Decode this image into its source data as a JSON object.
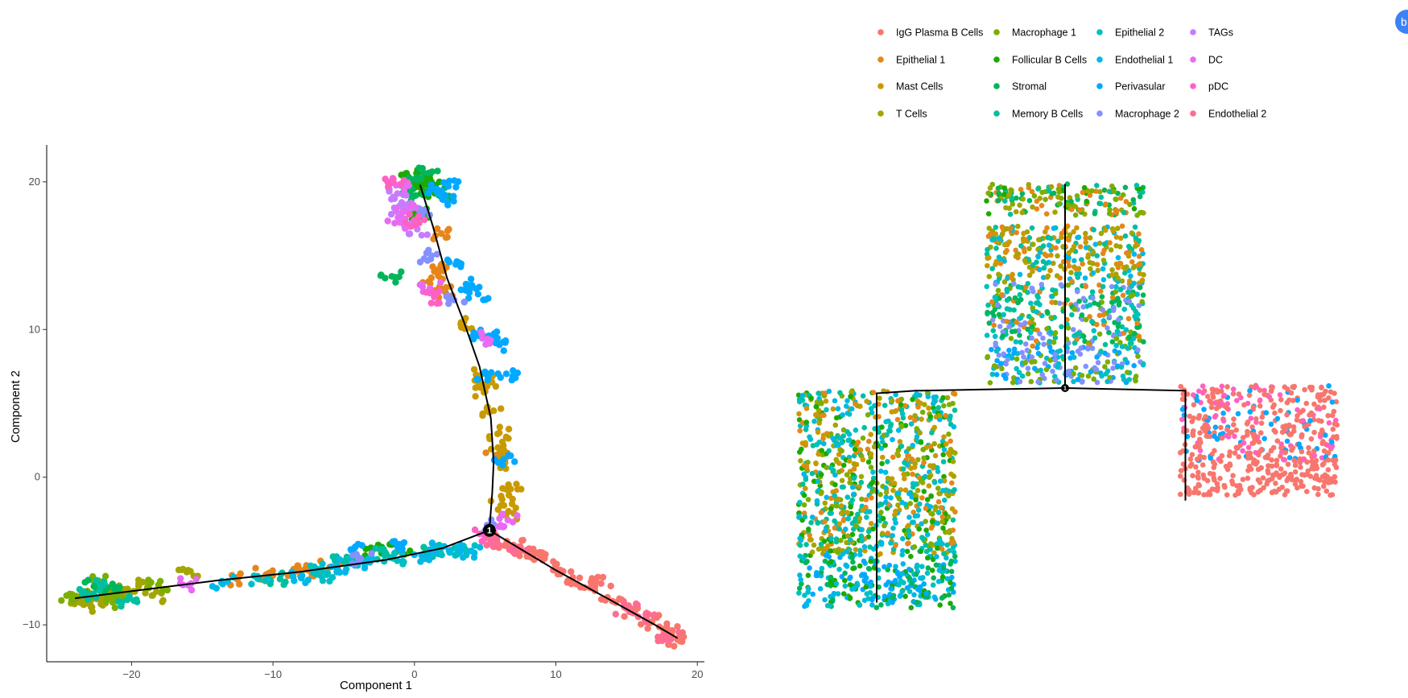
{
  "figure": {
    "badge_text": "b",
    "legend": [
      {
        "label": "IgG Plasma B Cells",
        "color": "#F8766D"
      },
      {
        "label": "Epithelial 1",
        "color": "#E6861A"
      },
      {
        "label": "Mast Cells",
        "color": "#C99A00"
      },
      {
        "label": "T Cells",
        "color": "#A3A500"
      },
      {
        "label": "Macrophage 1",
        "color": "#7CAE00"
      },
      {
        "label": "Follicular B Cells",
        "color": "#1BAA00"
      },
      {
        "label": "Stromal",
        "color": "#00B55A"
      },
      {
        "label": "Memory B Cells",
        "color": "#00BFA0"
      },
      {
        "label": "Epithelial 2",
        "color": "#00BFC4"
      },
      {
        "label": "Endothelial 1",
        "color": "#00B8E7"
      },
      {
        "label": "Perivasular",
        "color": "#00A9FF"
      },
      {
        "label": "Macrophage 2",
        "color": "#8491FF"
      },
      {
        "label": "TAGs",
        "color": "#C77CFF"
      },
      {
        "label": "DC",
        "color": "#E76BF3"
      },
      {
        "label": "pDC",
        "color": "#FF61C3"
      },
      {
        "label": "Endothelial 2",
        "color": "#FF6C91"
      }
    ]
  },
  "chart_data": [
    {
      "type": "scatter",
      "title": "",
      "xlabel": "Component 1",
      "ylabel": "Component 2",
      "xlim": [
        -26,
        20.5
      ],
      "ylim": [
        -12.5,
        22.5
      ],
      "x_ticks": [
        -20,
        -10,
        0,
        10,
        20
      ],
      "y_ticks": [
        -10,
        0,
        10,
        20
      ],
      "grid": false,
      "branch_point_label": "1",
      "branch_point": [
        5.3,
        -3.6
      ],
      "trajectory": [
        [
          [
            5.3,
            -3.6
          ],
          [
            5.5,
            -1
          ],
          [
            5.6,
            1
          ],
          [
            5.4,
            4
          ],
          [
            4.6,
            7.5
          ],
          [
            3.5,
            10.5
          ],
          [
            2.3,
            13.5
          ],
          [
            1.3,
            17
          ],
          [
            0.4,
            19.8
          ]
        ],
        [
          [
            5.3,
            -3.6
          ],
          [
            2,
            -4.8
          ],
          [
            -2,
            -5.6
          ],
          [
            -8,
            -6.4
          ],
          [
            -14,
            -7
          ],
          [
            -19,
            -7.6
          ],
          [
            -24,
            -8.2
          ]
        ],
        [
          [
            5.3,
            -3.6
          ],
          [
            10,
            -6.3
          ],
          [
            14,
            -8.4
          ],
          [
            17,
            -10
          ],
          [
            18.6,
            -10.9
          ]
        ]
      ],
      "series": [
        {
          "name": "IgG Plasma B Cells",
          "points": [
            [
              5.5,
              -4.5
            ],
            [
              7,
              -4.6
            ],
            [
              8.5,
              -5.2
            ],
            [
              10,
              -6.2
            ],
            [
              11.2,
              -6.8
            ],
            [
              12.5,
              -7.5
            ],
            [
              14,
              -8.4
            ],
            [
              15.5,
              -9.2
            ],
            [
              16.8,
              -9.8
            ],
            [
              17.6,
              -10.3
            ],
            [
              18.2,
              -10.7
            ],
            [
              18.6,
              -11.0
            ],
            [
              13.2,
              -7.2
            ],
            [
              7.8,
              -5.0
            ],
            [
              17.9,
              -10.5
            ],
            [
              9.2,
              -5.5
            ]
          ]
        },
        {
          "name": "Epithelial 1",
          "points": [
            [
              1.6,
              14
            ],
            [
              2.2,
              12.5
            ],
            [
              1.9,
              16.5
            ],
            [
              -12.5,
              -6.9
            ],
            [
              -10.5,
              -6.6
            ],
            [
              -8.5,
              -6.4
            ],
            [
              -6,
              -6.1
            ],
            [
              5.8,
              1.5
            ],
            [
              1.2,
              13.5
            ],
            [
              -7.5,
              -6.3
            ]
          ]
        },
        {
          "name": "Mast Cells",
          "points": [
            [
              5.2,
              6.5
            ],
            [
              5.6,
              4.5
            ],
            [
              6.0,
              3.0
            ],
            [
              6.4,
              1.0
            ],
            [
              6.8,
              -0.8
            ],
            [
              6.5,
              -2.5
            ],
            [
              4.8,
              7.0
            ],
            [
              5.9,
              2.0
            ],
            [
              6.2,
              -1.5
            ],
            [
              3.5,
              10.5
            ],
            [
              5.0,
              5.8
            ]
          ]
        },
        {
          "name": "T Cells",
          "points": [
            [
              -23,
              -8.0
            ],
            [
              -22.3,
              -8.2
            ],
            [
              -21.5,
              -7.8
            ],
            [
              -20.5,
              -7.6
            ],
            [
              -19.5,
              -7.4
            ],
            [
              -18.5,
              -8.0
            ],
            [
              -23.8,
              -8.4
            ],
            [
              -22.8,
              -8.8
            ],
            [
              -16,
              -6.3
            ],
            [
              -21,
              -7.9
            ]
          ]
        },
        {
          "name": "Macrophage 1",
          "points": [
            [
              -22.5,
              -7.5
            ],
            [
              -23.5,
              -7.8
            ],
            [
              -21.8,
              -8.4
            ],
            [
              -20.8,
              -7.9
            ],
            [
              -24.2,
              -8.1
            ],
            [
              -22,
              -7.1
            ],
            [
              -18.1,
              -7.3
            ]
          ]
        },
        {
          "name": "Follicular B Cells",
          "points": [
            [
              0.2,
              20.5
            ],
            [
              0.8,
              20.3
            ],
            [
              1.2,
              20.0
            ],
            [
              -0.3,
              20.2
            ],
            [
              0.5,
              19.6
            ],
            [
              1.5,
              19.4
            ],
            [
              -3,
              -5.0
            ],
            [
              -1,
              -4.8
            ],
            [
              0.6,
              17.8
            ]
          ]
        },
        {
          "name": "Stromal",
          "points": [
            [
              1.0,
              20.6
            ],
            [
              -0.6,
              19.9
            ],
            [
              1.8,
              19.2
            ],
            [
              -0.1,
              19.0
            ],
            [
              -22.6,
              -7.4
            ],
            [
              -21.2,
              -7.6
            ],
            [
              -1.6,
              13.6
            ]
          ]
        },
        {
          "name": "Memory B Cells",
          "points": [
            [
              -22.2,
              -7.3
            ],
            [
              -23.2,
              -8.0
            ],
            [
              -20.3,
              -8.3
            ],
            [
              -5,
              -5.7
            ],
            [
              -2,
              -5.2
            ],
            [
              -9.5,
              -6.9
            ],
            [
              1.0,
              -5.0
            ]
          ]
        },
        {
          "name": "Epithelial 2",
          "points": [
            [
              -11,
              -6.9
            ],
            [
              -7,
              -6.2
            ],
            [
              -4,
              -5.8
            ],
            [
              -1.5,
              -5.5
            ],
            [
              2.5,
              -5.1
            ],
            [
              3.6,
              -4.9
            ],
            [
              -6.2,
              -6.6
            ]
          ]
        },
        {
          "name": "Endothelial 1",
          "points": [
            [
              -8,
              -6.8
            ],
            [
              -5.5,
              -6.0
            ],
            [
              -3.5,
              -5.9
            ],
            [
              0.5,
              -5.3
            ],
            [
              2.0,
              -4.7
            ],
            [
              4.0,
              -5.0
            ],
            [
              -13.5,
              -7.1
            ]
          ]
        },
        {
          "name": "Perivasular",
          "points": [
            [
              1.6,
              19.5
            ],
            [
              2.4,
              19.7
            ],
            [
              2.0,
              18.8
            ],
            [
              3.0,
              14.6
            ],
            [
              3.8,
              13.0
            ],
            [
              4.5,
              12.4
            ],
            [
              4.2,
              9.8
            ],
            [
              5.3,
              9.5
            ],
            [
              6.0,
              9.0
            ],
            [
              6.5,
              7.0
            ],
            [
              5.2,
              6.8
            ],
            [
              6.3,
              1.2
            ],
            [
              -4.5,
              -4.9
            ],
            [
              -1.2,
              -4.7
            ]
          ]
        },
        {
          "name": "Macrophage 2",
          "points": [
            [
              1.2,
              15.0
            ],
            [
              0.3,
              18.2
            ],
            [
              2.8,
              12.0
            ],
            [
              5.6,
              -3.2
            ],
            [
              -3.8,
              -5.5
            ]
          ]
        },
        {
          "name": "TAGs",
          "points": [
            [
              -1.2,
              19.2
            ],
            [
              -0.9,
              18.6
            ],
            [
              0.2,
              16.8
            ],
            [
              -1.3,
              18.0
            ]
          ]
        },
        {
          "name": "DC",
          "points": [
            [
              -1.0,
              19.8
            ],
            [
              -0.6,
              18.0
            ],
            [
              1.1,
              12.8
            ],
            [
              4.8,
              9.4
            ],
            [
              6.6,
              -2.9
            ],
            [
              -15.8,
              -7.2
            ],
            [
              -1.4,
              17.2
            ]
          ]
        },
        {
          "name": "pDC",
          "points": [
            [
              -1.5,
              20.0
            ],
            [
              0.0,
              17.4
            ],
            [
              1.4,
              12.2
            ],
            [
              5.0,
              -4.0
            ]
          ]
        },
        {
          "name": "Endothelial 2",
          "points": [
            [
              5.8,
              -4.3
            ],
            [
              7.4,
              -4.9
            ],
            [
              18.0,
              -10.9
            ],
            [
              15.0,
              -8.9
            ],
            [
              16.3,
              -9.6
            ]
          ]
        }
      ]
    },
    {
      "type": "scatter",
      "title": "",
      "xlabel": "",
      "ylabel": "",
      "grid": false,
      "axes": false,
      "branch_point_label": "1",
      "tree": {
        "root": [
          0,
          0
        ],
        "trunk_top": [
          0,
          7.8
        ],
        "left_branch": [
          [
            0,
            0
          ],
          [
            -5.7,
            -0.1
          ],
          [
            -7.2,
            -0.2
          ],
          [
            -7.2,
            -8.2
          ]
        ],
        "right_branch": [
          [
            0,
            0
          ],
          [
            4.6,
            -0.1
          ],
          [
            4.6,
            -4.3
          ]
        ]
      },
      "cell_groups": [
        {
          "branch": "top",
          "rows": [
            {
              "y_range": [
                6.6,
                7.8
              ],
              "colors": [
                "#7CAE00",
                "#A3A500",
                "#1BAA00",
                "#00B55A",
                "#00BFA0",
                "#E6861A"
              ]
            },
            {
              "y_range": [
                4.0,
                6.2
              ],
              "colors": [
                "#E6861A",
                "#C99A00",
                "#00BFA0",
                "#00B8E7",
                "#A3A500"
              ]
            },
            {
              "y_range": [
                1.6,
                4.0
              ],
              "colors": [
                "#00BFA0",
                "#00B55A",
                "#00BFC4",
                "#8491FF",
                "#E6861A",
                "#7CAE00"
              ]
            },
            {
              "y_range": [
                0.2,
                1.6
              ],
              "colors": [
                "#8491FF",
                "#00BFC4",
                "#00A9FF",
                "#7CAE00"
              ]
            }
          ]
        },
        {
          "branch": "left",
          "rows": [
            {
              "y_range": [
                -6.4,
                -0.1
              ],
              "colors": [
                "#C99A00",
                "#A3A500",
                "#00BFC4",
                "#00B8E7",
                "#00BFA0",
                "#E6861A",
                "#7CAE00",
                "#1BAA00"
              ]
            },
            {
              "y_range": [
                -8.4,
                -6.4
              ],
              "colors": [
                "#00A9FF",
                "#1BAA00",
                "#00B8E7",
                "#00BFC4",
                "#00B55A"
              ]
            }
          ]
        },
        {
          "branch": "right",
          "rows": [
            {
              "y_range": [
                -2.8,
                0.1
              ],
              "colors": [
                "#F8766D",
                "#F8766D",
                "#F8766D",
                "#F8766D",
                "#FF61C3",
                "#00A9FF"
              ]
            },
            {
              "y_range": [
                -4.1,
                -2.8
              ],
              "colors": [
                "#F8766D"
              ]
            }
          ]
        }
      ]
    }
  ]
}
